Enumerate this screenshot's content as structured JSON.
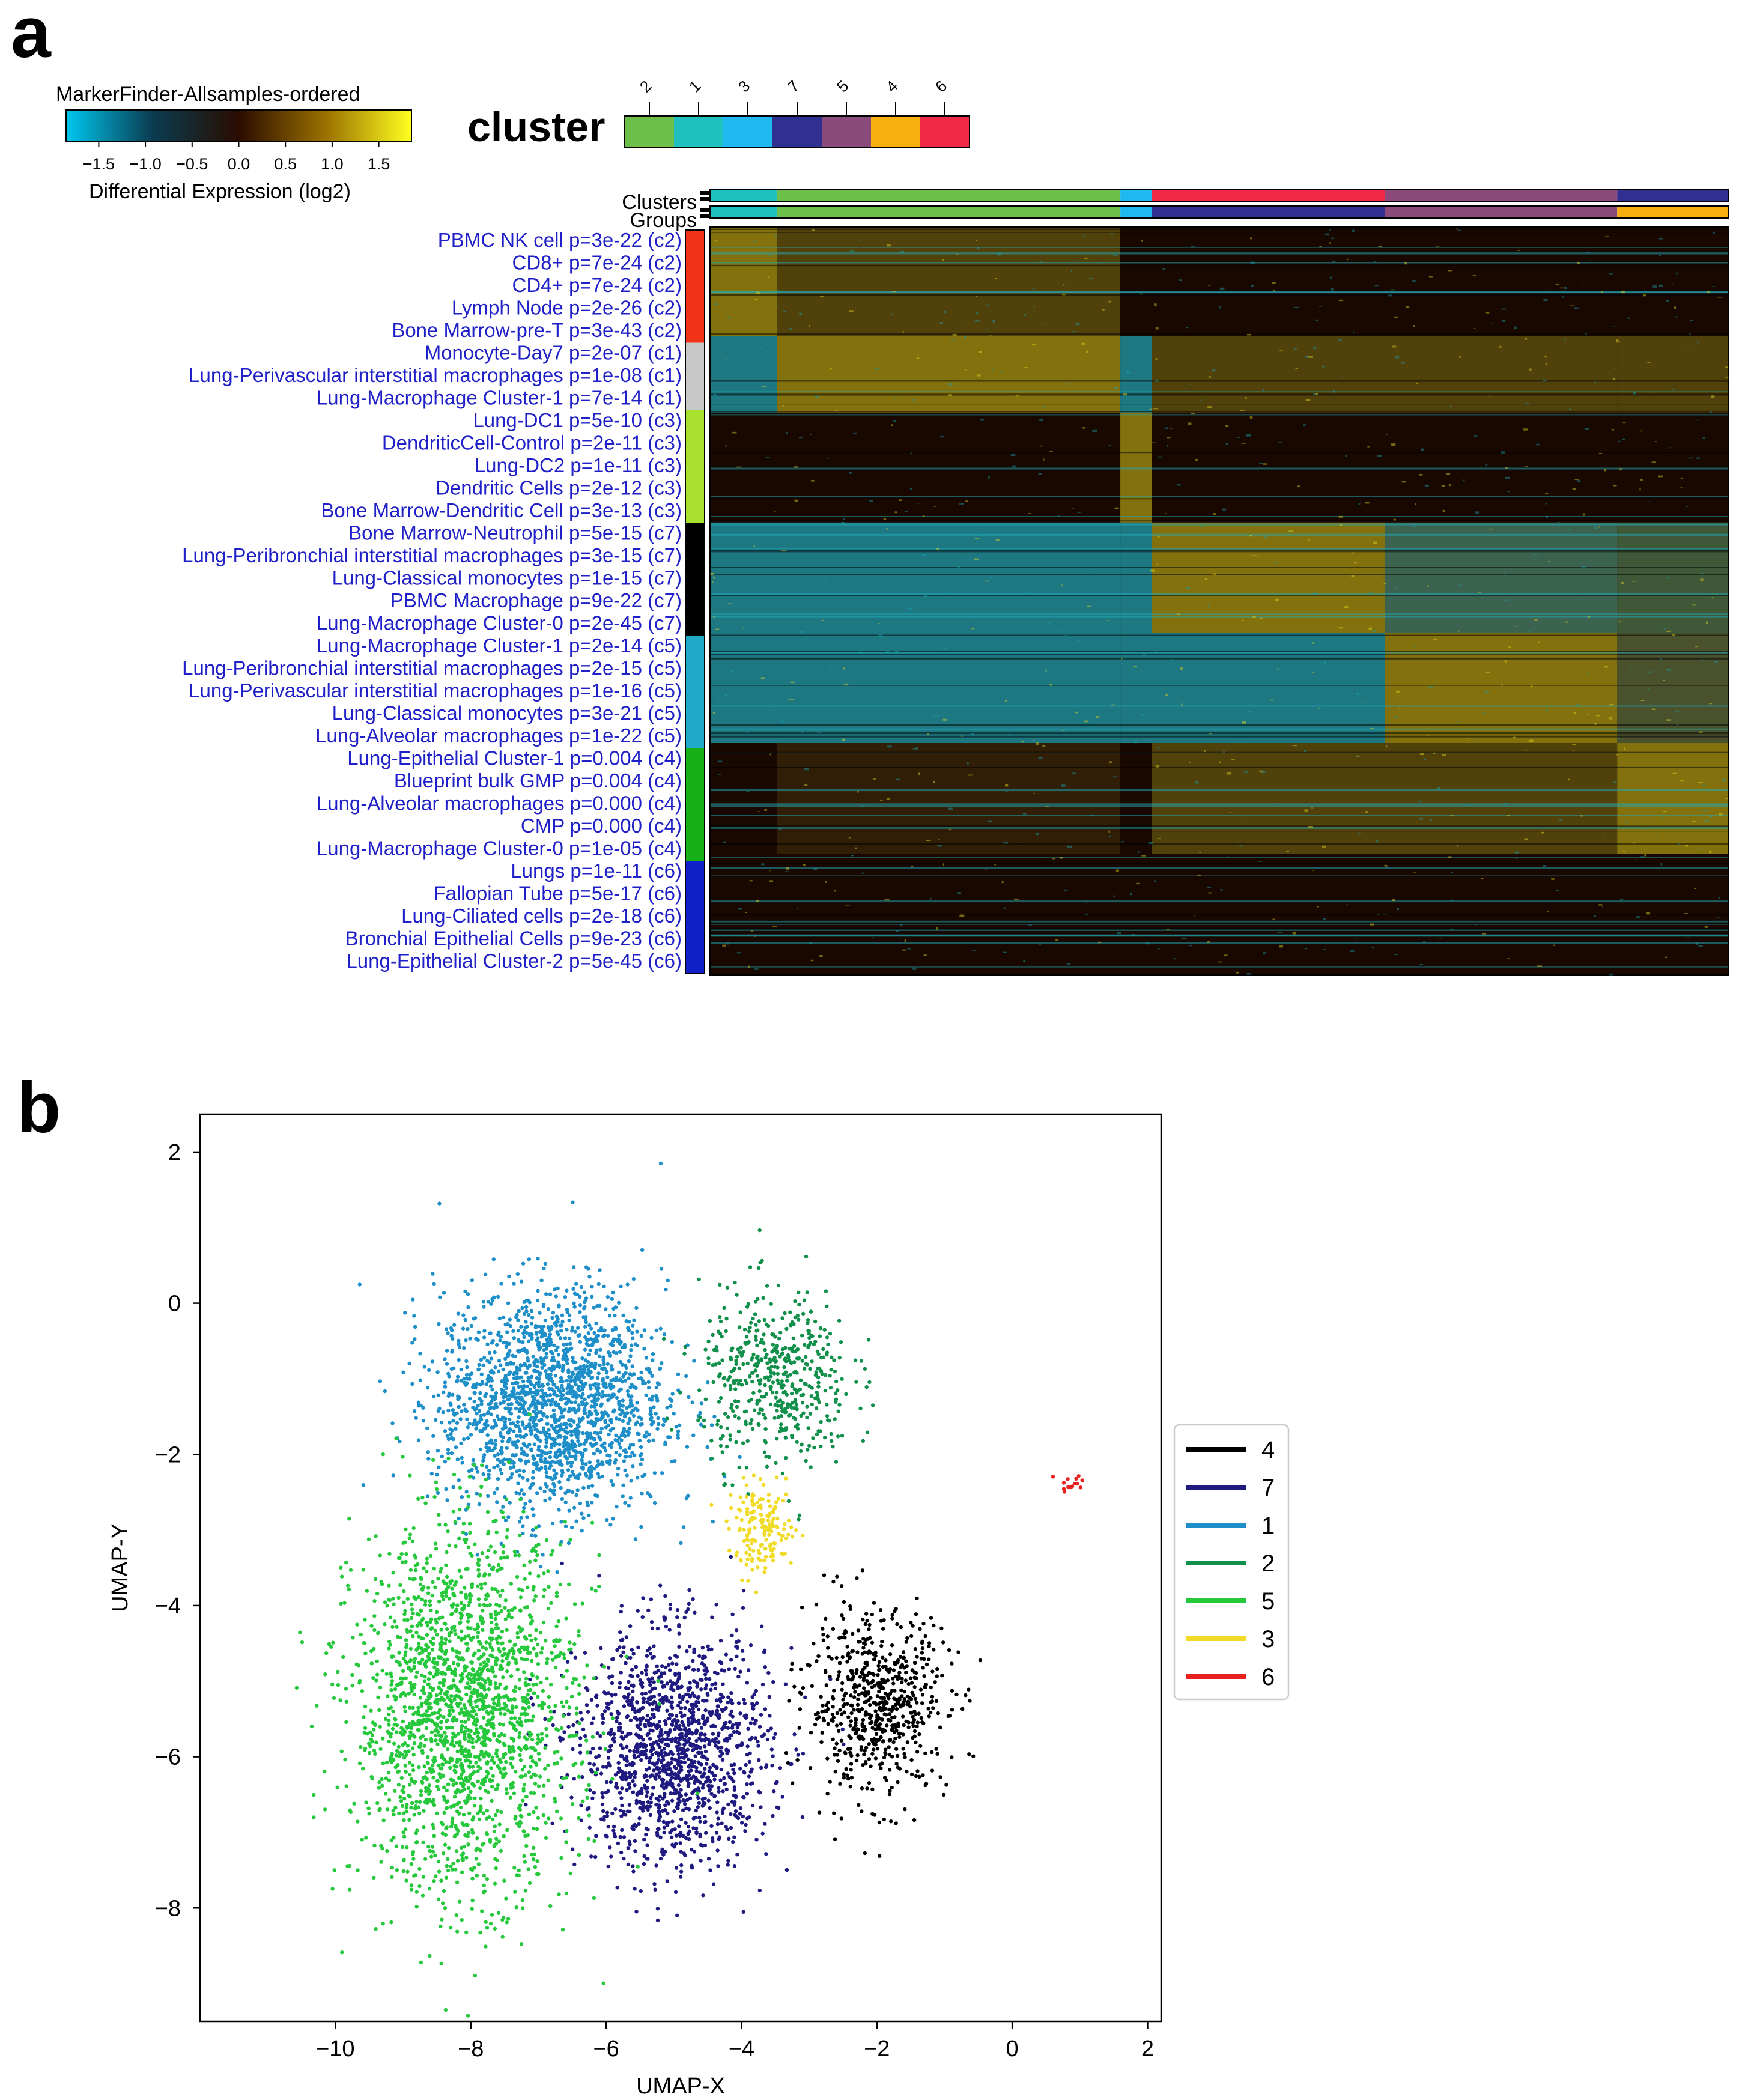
{
  "panel_a": {
    "letter": "a",
    "colorbar": {
      "title": "MarkerFinder-Allsamples-ordered",
      "ticks": [
        "−1.5",
        "−1.0",
        "−0.5",
        "0.0",
        "0.5",
        "1.0",
        "1.5"
      ],
      "label": "Differential Expression (log2)",
      "stops": [
        "#00c8f0",
        "#0a3c50",
        "#2a0c00",
        "#9a7000",
        "#ffff20"
      ]
    },
    "cluster_legend": {
      "title": "cluster",
      "labels": [
        "2",
        "1",
        "3",
        "7",
        "5",
        "4",
        "6"
      ]
    },
    "track_labels": {
      "clusters": "Clusters",
      "groups": "Groups"
    },
    "group_colors": {
      "c2": "#f03218",
      "c1": "#c8c8c8",
      "c3": "#a8e030",
      "c7": "#000000",
      "c5": "#20a8c8",
      "c4": "#18b018",
      "c6": "#1020c8"
    },
    "row_labels": [
      {
        "text": "PBMC NK cell p=3e-22 (c2)",
        "group": "c2"
      },
      {
        "text": "CD8+ p=7e-24 (c2)",
        "group": "c2"
      },
      {
        "text": "CD4+ p=7e-24 (c2)",
        "group": "c2"
      },
      {
        "text": "Lymph Node p=2e-26 (c2)",
        "group": "c2"
      },
      {
        "text": "Bone Marrow-pre-T p=3e-43 (c2)",
        "group": "c2"
      },
      {
        "text": "Monocyte-Day7 p=2e-07 (c1)",
        "group": "c1"
      },
      {
        "text": "Lung-Perivascular interstitial macrophages p=1e-08 (c1)",
        "group": "c1"
      },
      {
        "text": "Lung-Macrophage Cluster-1 p=7e-14 (c1)",
        "group": "c1"
      },
      {
        "text": "Lung-DC1 p=5e-10 (c3)",
        "group": "c3"
      },
      {
        "text": "DendriticCell-Control p=2e-11 (c3)",
        "group": "c3"
      },
      {
        "text": "Lung-DC2 p=1e-11 (c3)",
        "group": "c3"
      },
      {
        "text": "Dendritic Cells p=2e-12 (c3)",
        "group": "c3"
      },
      {
        "text": "Bone Marrow-Dendritic Cell p=3e-13 (c3)",
        "group": "c3"
      },
      {
        "text": "Bone Marrow-Neutrophil p=5e-15 (c7)",
        "group": "c7"
      },
      {
        "text": "Lung-Peribronchial interstitial macrophages p=3e-15 (c7)",
        "group": "c7"
      },
      {
        "text": "Lung-Classical monocytes p=1e-15 (c7)",
        "group": "c7"
      },
      {
        "text": "PBMC Macrophage p=9e-22 (c7)",
        "group": "c7"
      },
      {
        "text": "Lung-Macrophage Cluster-0 p=2e-45 (c7)",
        "group": "c7"
      },
      {
        "text": "Lung-Macrophage Cluster-1 p=2e-14 (c5)",
        "group": "c5"
      },
      {
        "text": "Lung-Peribronchial interstitial macrophages p=2e-15 (c5)",
        "group": "c5"
      },
      {
        "text": "Lung-Perivascular interstitial macrophages p=1e-16 (c5)",
        "group": "c5"
      },
      {
        "text": "Lung-Classical monocytes p=3e-21 (c5)",
        "group": "c5"
      },
      {
        "text": "Lung-Alveolar macrophages p=1e-22 (c5)",
        "group": "c5"
      },
      {
        "text": "Lung-Epithelial Cluster-1 p=0.004 (c4)",
        "group": "c4"
      },
      {
        "text": "Blueprint bulk GMP p=0.004 (c4)",
        "group": "c4"
      },
      {
        "text": "Lung-Alveolar macrophages p=0.000 (c4)",
        "group": "c4"
      },
      {
        "text": "CMP p=0.000 (c4)",
        "group": "c4"
      },
      {
        "text": "Lung-Macrophage Cluster-0 p=1e-05 (c4)",
        "group": "c4"
      },
      {
        "text": "Lungs p=1e-11 (c6)",
        "group": "c6"
      },
      {
        "text": "Fallopian Tube p=5e-17 (c6)",
        "group": "c6"
      },
      {
        "text": "Lung-Ciliated cells p=2e-18 (c6)",
        "group": "c6"
      },
      {
        "text": "Bronchial Epithelial Cells p=9e-23 (c6)",
        "group": "c6"
      },
      {
        "text": "Lung-Epithelial Cluster-2 p=5e-45 (c6)",
        "group": "c6"
      }
    ]
  },
  "chart_data": {
    "type": "scatter",
    "panel_letter": "b",
    "xlabel": "UMAP-X",
    "ylabel": "UMAP-Y",
    "xlim": [
      -12,
      2.2
    ],
    "ylim": [
      -9.5,
      2.5
    ],
    "xticks": [
      -10,
      -8,
      -6,
      -4,
      -2,
      0,
      2
    ],
    "xtick_labels": [
      "−10",
      "−8",
      "−6",
      "−4",
      "−2",
      "0",
      "2"
    ],
    "yticks": [
      2,
      0,
      -2,
      -4,
      -6,
      -8
    ],
    "ytick_labels": [
      "2",
      "0",
      "−2",
      "−4",
      "−6",
      "−8"
    ],
    "legend_position": "right",
    "series": [
      {
        "name": "4",
        "color": "#000000",
        "center": [
          -2.0,
          -5.3
        ],
        "spread": [
          0.75,
          0.85
        ],
        "n": 650
      },
      {
        "name": "7",
        "color": "#1f1a80",
        "center": [
          -5.0,
          -5.9
        ],
        "spread": [
          1.0,
          1.1
        ],
        "n": 1400
      },
      {
        "name": "1",
        "color": "#1e8fc8",
        "center": [
          -6.8,
          -1.3
        ],
        "spread": [
          1.2,
          1.05
        ],
        "n": 1900
      },
      {
        "name": "2",
        "color": "#10904a",
        "center": [
          -3.5,
          -1.0
        ],
        "spread": [
          0.8,
          0.85
        ],
        "n": 500
      },
      {
        "name": "5",
        "color": "#26c83c",
        "center": [
          -8.1,
          -5.4
        ],
        "spread": [
          1.15,
          1.7
        ],
        "n": 2100
      },
      {
        "name": "3",
        "color": "#f0dc28",
        "center": [
          -3.7,
          -3.0
        ],
        "spread": [
          0.35,
          0.4
        ],
        "n": 170
      },
      {
        "name": "6",
        "color": "#e82020",
        "center": [
          0.9,
          -2.4
        ],
        "spread": [
          0.18,
          0.12
        ],
        "n": 14
      }
    ]
  }
}
